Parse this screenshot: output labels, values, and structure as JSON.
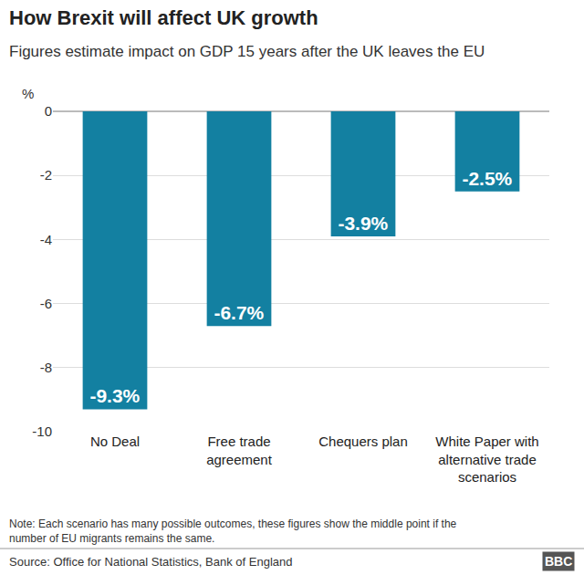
{
  "chart_data": {
    "type": "bar",
    "title": "How Brexit will affect UK growth",
    "subtitle": "Figures estimate impact on GDP 15 years after the UK leaves the EU",
    "ylabel": "%",
    "categories": [
      "No Deal",
      "Free trade agreement",
      "Chequers plan",
      "White Paper with alternative trade scenarios"
    ],
    "values": [
      -9.3,
      -6.7,
      -3.9,
      -2.5
    ],
    "value_labels": [
      "-9.3%",
      "-6.7%",
      "-3.9%",
      "-2.5%"
    ],
    "data_labels": true,
    "color": "#1380a1",
    "ylim": [
      -10,
      0
    ],
    "yticks": [
      0,
      -2,
      -4,
      -6,
      -8,
      -10
    ],
    "grid": true,
    "note": "Note: Each scenario has many possible outcomes, these figures show the middle point if the number of EU migrants remains the same.",
    "source": "Source: Office for National Statistics, Bank of England",
    "logo": "BBC"
  }
}
